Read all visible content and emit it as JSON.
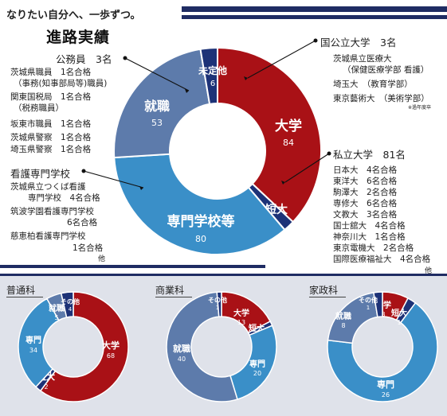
{
  "header": {
    "subtitle": "なりたい自分へ、一歩ずつ。",
    "title": "進路実績"
  },
  "chart_data": [
    {
      "type": "donut",
      "name": "overall",
      "categories": [
        "大学",
        "短大",
        "専門学校等",
        "就職",
        "未定他"
      ],
      "values": [
        84,
        4,
        80,
        53,
        6
      ],
      "colors": [
        "#a91116",
        "#1d3277",
        "#3a8fc8",
        "#5d7bab",
        "#1d3277"
      ]
    },
    {
      "type": "donut",
      "name": "普通科",
      "categories": [
        "大学",
        "短大",
        "専門",
        "就職",
        "その他"
      ],
      "values": [
        68,
        2,
        34,
        5,
        4
      ],
      "colors": [
        "#a91116",
        "#1d3277",
        "#3a8fc8",
        "#5d7bab",
        "#1d3277"
      ]
    },
    {
      "type": "donut",
      "name": "商業科",
      "categories": [
        "大学",
        "短大",
        "専門",
        "就職",
        "その他"
      ],
      "values": [
        13,
        1,
        20,
        40,
        1
      ],
      "colors": [
        "#a91116",
        "#1d3277",
        "#3a8fc8",
        "#5d7bab",
        "#1d3277"
      ]
    },
    {
      "type": "donut",
      "name": "家政科",
      "categories": [
        "大学",
        "短大",
        "専門",
        "就職",
        "その他"
      ],
      "values": [
        3,
        1,
        26,
        8,
        1
      ],
      "colors": [
        "#a91116",
        "#1d3277",
        "#3a8fc8",
        "#5d7bab",
        "#1d3277"
      ]
    }
  ],
  "donut_labels": {
    "overall": {
      "大学": [
        "大学",
        "84"
      ],
      "短大": [
        "短大",
        "4"
      ],
      "専門学校等": [
        "専門学校等",
        "80"
      ],
      "就職": [
        "就職",
        "53"
      ],
      "未定他": [
        "未定他",
        "6"
      ]
    },
    "futsu": {
      "大学": [
        "大学",
        "68"
      ],
      "短大": [
        "短大",
        "2"
      ],
      "専門": [
        "専門",
        "34"
      ],
      "就職": [
        "就職",
        "5"
      ],
      "その他": [
        "その他",
        "4"
      ]
    },
    "shogyo": {
      "大学": [
        "大学",
        "13"
      ],
      "短大": [
        "短大",
        "1"
      ],
      "専門": [
        "専門",
        "20"
      ],
      "就職": [
        "就職",
        "40"
      ],
      "その他": [
        "その他",
        "1"
      ]
    },
    "kasei": {
      "大学": [
        "大学",
        "3"
      ],
      "短大": [
        "短大",
        "1"
      ],
      "専門": [
        "専門",
        "26"
      ],
      "就職": [
        "就職",
        "8"
      ],
      "その他": [
        "その他",
        "1"
      ]
    }
  },
  "kokko": {
    "heading": "国公立大学　3名",
    "items": [
      "茨城県立医療大",
      "（保健医療学部 看護）",
      "埼玉大　（教育学部）",
      "東京藝術大　（美術学部）"
    ],
    "note": "※過年度卒"
  },
  "shiritsu": {
    "heading": "私立大学　81名",
    "items": [
      "日本大　4名合格",
      "東洋大　6名合格",
      "駒澤大　2名合格",
      "専修大　6名合格",
      "文教大　3名合格",
      "国士舘大　4名合格",
      "神奈川大　1名合格",
      "東京電機大　2名合格",
      "国際医療福祉大　4名合格"
    ],
    "etc": "他"
  },
  "komuin": {
    "heading": "公務員　3名",
    "items": [
      "茨城県職員　1名合格",
      "（事務(知事部局等)職員)",
      "関東国税局　1名合格",
      "（税務職員）",
      "坂東市職員　1名合格",
      "茨城県警察　1名合格",
      "埼玉県警察　1名合格"
    ]
  },
  "kango": {
    "heading": "看護専門学校",
    "items": [
      "茨城県立つくば看護",
      "専門学校　4名合格",
      "筑波学園看護専門学校",
      "6名合格",
      "慈恵柏看護専門学校",
      "1名合格"
    ],
    "etc": "他"
  },
  "sections": {
    "futsu": "普通科",
    "shogyo": "商業科",
    "kasei": "家政科"
  }
}
